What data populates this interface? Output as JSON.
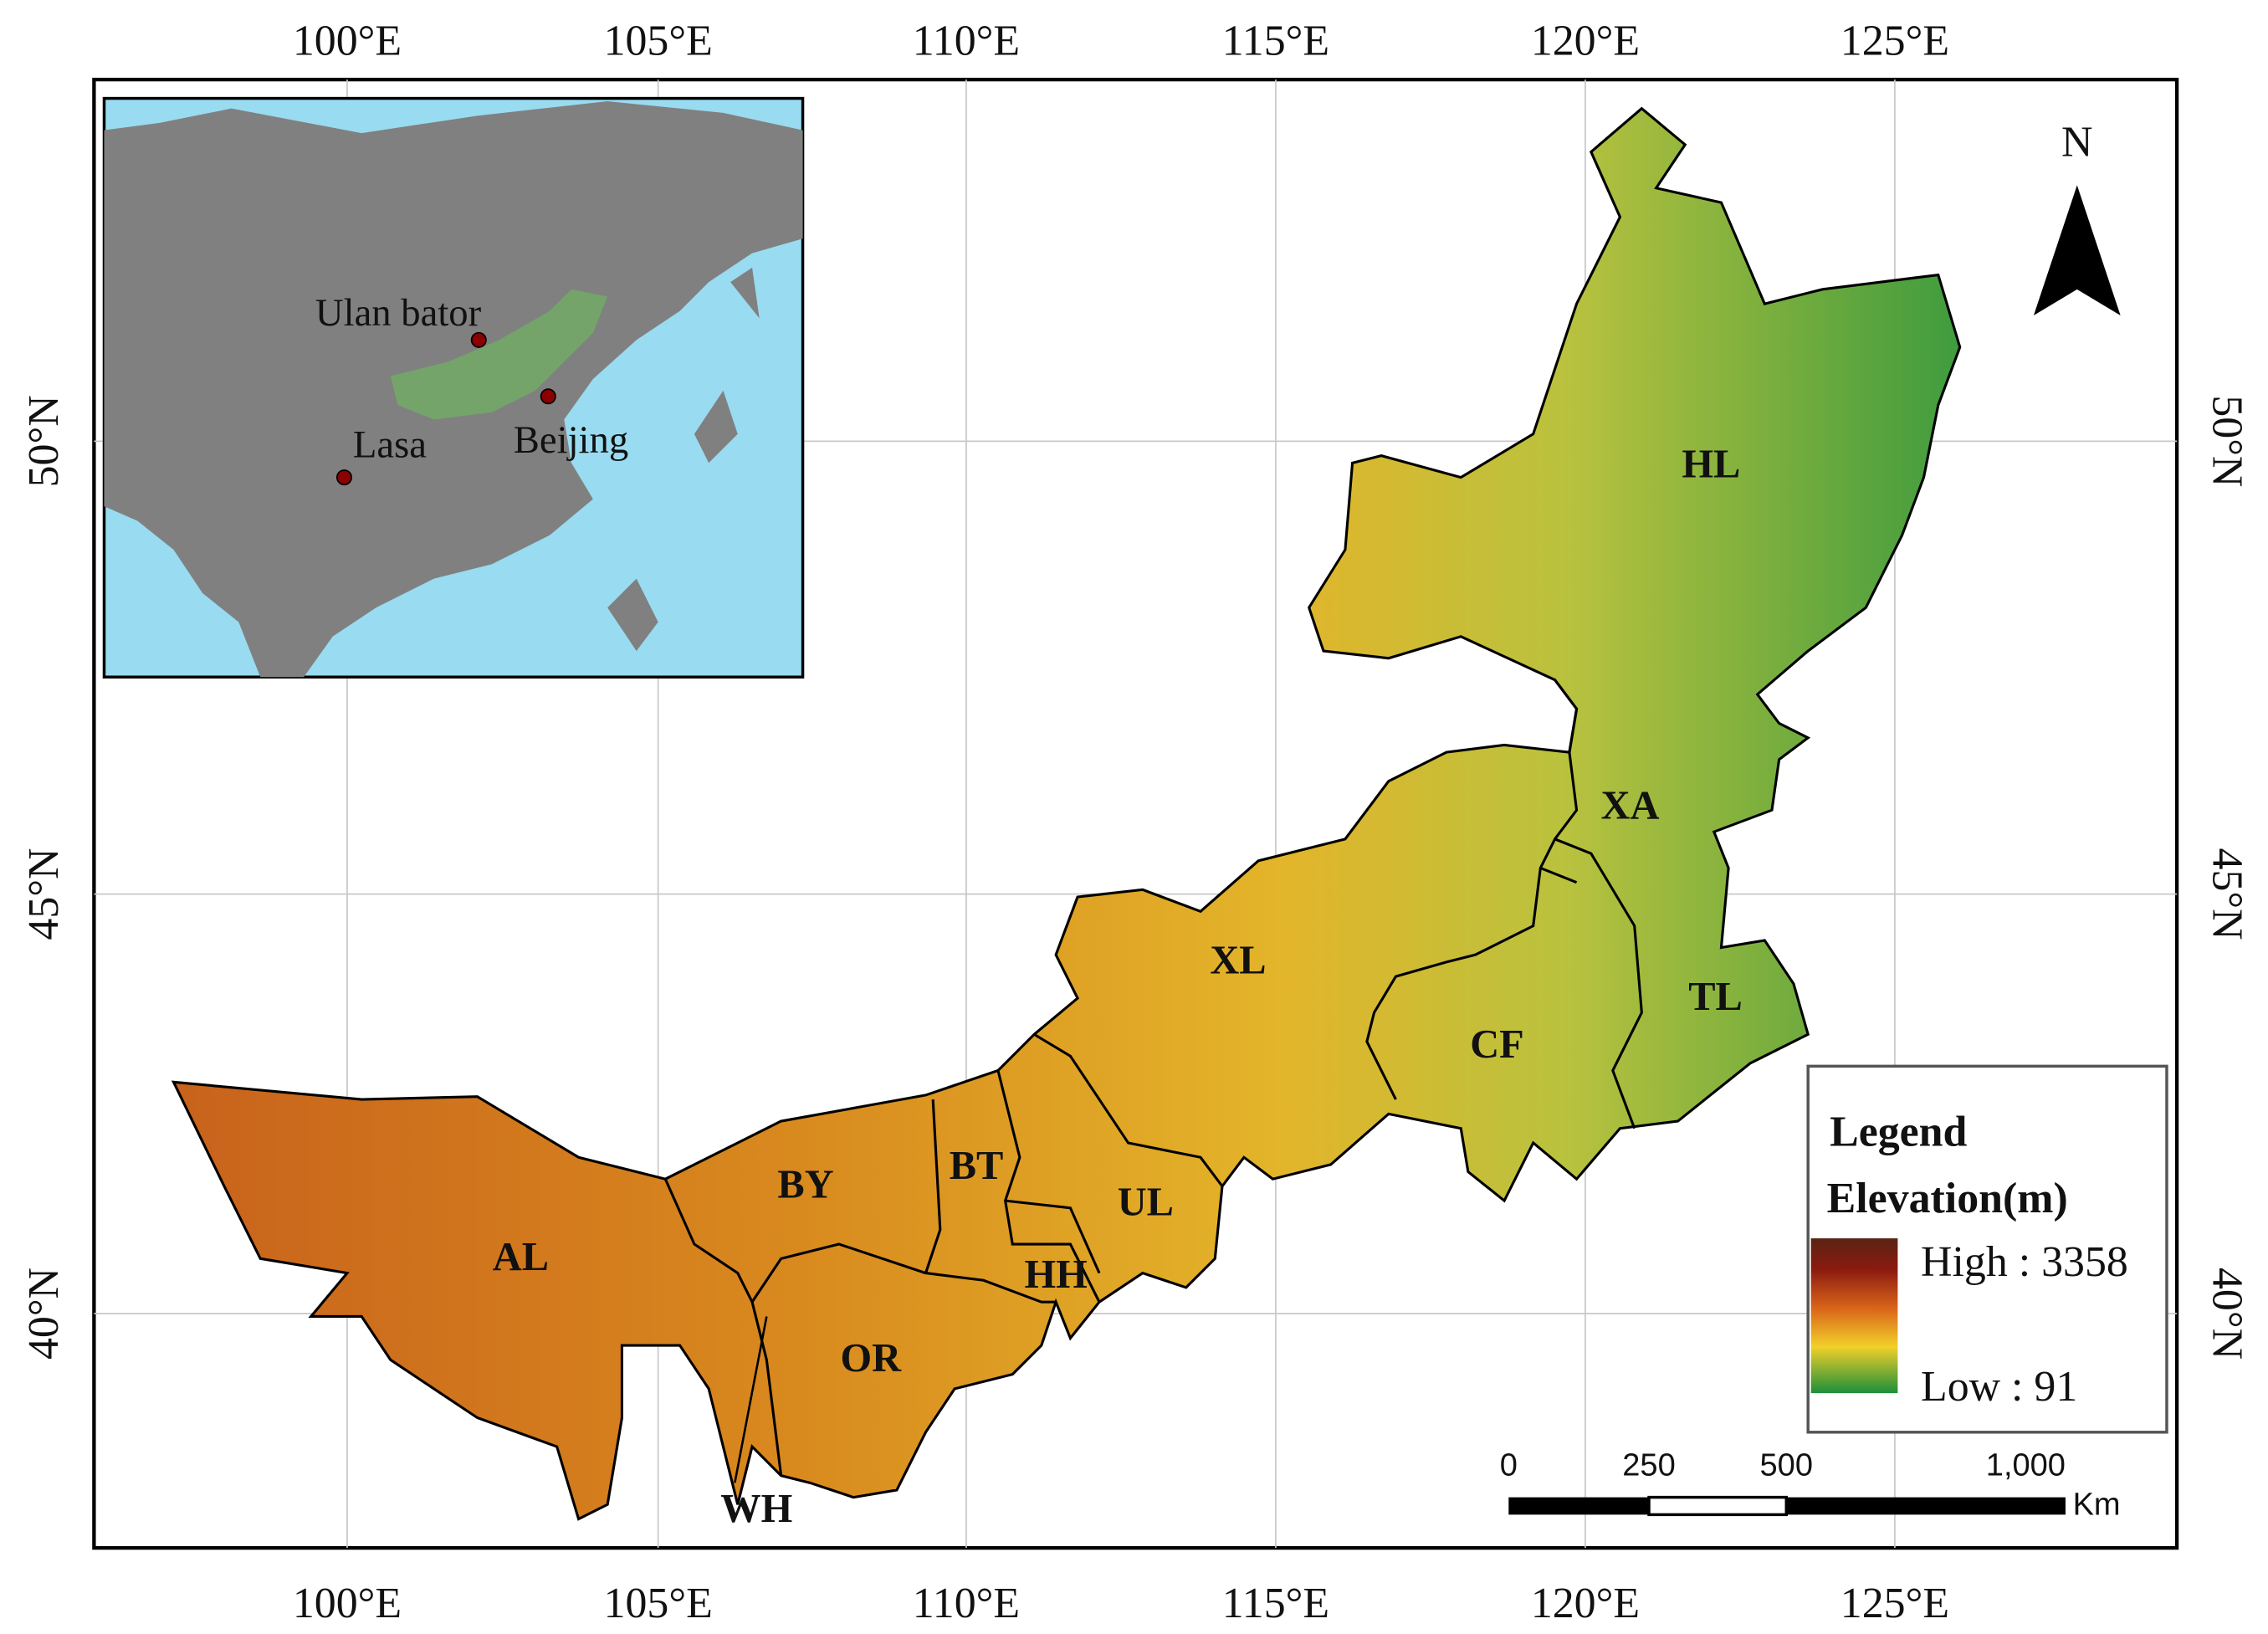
{
  "axes": {
    "longitudes": [
      "100°E",
      "105°E",
      "110°E",
      "115°E",
      "120°E",
      "125°E"
    ],
    "latitudes": [
      "50°N",
      "45°N",
      "40°N"
    ]
  },
  "inset": {
    "labels": [
      "Ulan bator",
      "Beijing",
      "Lasa"
    ]
  },
  "north": "N",
  "regions": [
    "HL",
    "XA",
    "XL",
    "TL",
    "CF",
    "BY",
    "BT",
    "UL",
    "AL",
    "HH",
    "OR",
    "WH"
  ],
  "legend": {
    "title": "Legend",
    "subtitle": "Elevation(m)",
    "high": "High : 3358",
    "low": "Low : 91"
  },
  "scale_bar": {
    "labels": [
      "0",
      "250",
      "500",
      "1,000"
    ],
    "unit": "Km"
  }
}
